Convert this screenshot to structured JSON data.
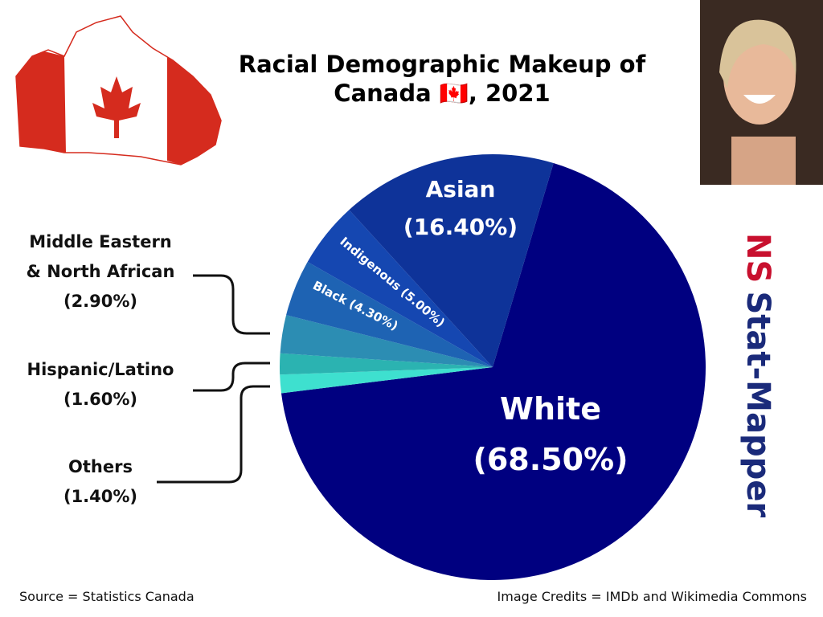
{
  "chart_data": {
    "type": "pie",
    "title": "Racial Demographic Makeup of Canada 🇨🇦, 2021",
    "categories": [
      "White",
      "Others",
      "Hispanic/Latino",
      "Middle Eastern\n& North African",
      "Black",
      "Indigenous",
      "Asian"
    ],
    "values": [
      68.5,
      1.4,
      1.6,
      2.9,
      4.3,
      5.0,
      16.4
    ],
    "value_labels": [
      "(68.50%)",
      "(1.40%)",
      "(1.60%)",
      "(2.90%)",
      "(4.30%)",
      "(5.00%)",
      "(16.40%)"
    ],
    "colors": [
      "#000080",
      "#3ee0cf",
      "#2bb3b1",
      "#2c8db3",
      "#1e63b3",
      "#1547b1",
      "#0e3399"
    ],
    "brand_prefix": "NS",
    "brand": "Stat-Mapper",
    "source": "Source = Statistics Canada",
    "credits": "Image Credits = IMDb and Wikimedia Commons"
  }
}
